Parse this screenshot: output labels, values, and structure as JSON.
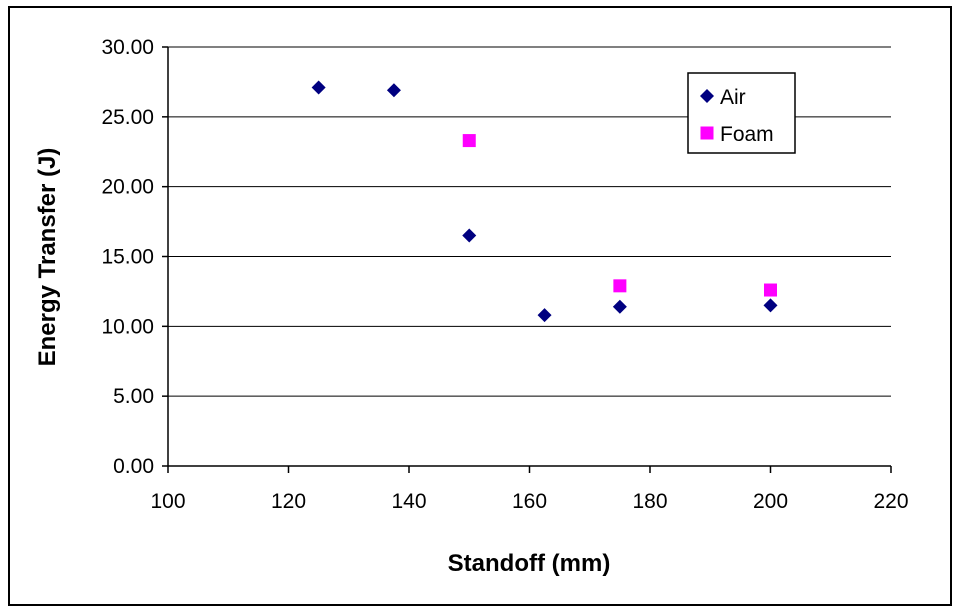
{
  "chart_data": {
    "type": "scatter",
    "title": "",
    "xlabel": "Standoff (mm)",
    "ylabel": "Energy Transfer (J)",
    "xlim": [
      100,
      220
    ],
    "ylim": [
      0,
      30
    ],
    "xticks": [
      100,
      120,
      140,
      160,
      180,
      200,
      220
    ],
    "yticks": [
      0,
      5,
      10,
      15,
      20,
      25,
      30
    ],
    "xtick_labels": [
      "100",
      "120",
      "140",
      "160",
      "180",
      "200",
      "220"
    ],
    "ytick_labels": [
      "0.00",
      "5.00",
      "10.00",
      "15.00",
      "20.00",
      "25.00",
      "30.00"
    ],
    "grid": "horizontal",
    "legend_position": "top-right",
    "series": [
      {
        "name": "Air",
        "marker": "diamond",
        "color": "#000080",
        "points": [
          {
            "x": 125,
            "y": 27.1
          },
          {
            "x": 137.5,
            "y": 26.9
          },
          {
            "x": 150,
            "y": 16.5
          },
          {
            "x": 162.5,
            "y": 10.8
          },
          {
            "x": 175,
            "y": 11.4
          },
          {
            "x": 200,
            "y": 11.5
          }
        ]
      },
      {
        "name": "Foam",
        "marker": "square",
        "color": "#FF00FF",
        "points": [
          {
            "x": 150,
            "y": 23.3
          },
          {
            "x": 175,
            "y": 12.9
          },
          {
            "x": 200,
            "y": 12.6
          }
        ]
      }
    ]
  }
}
